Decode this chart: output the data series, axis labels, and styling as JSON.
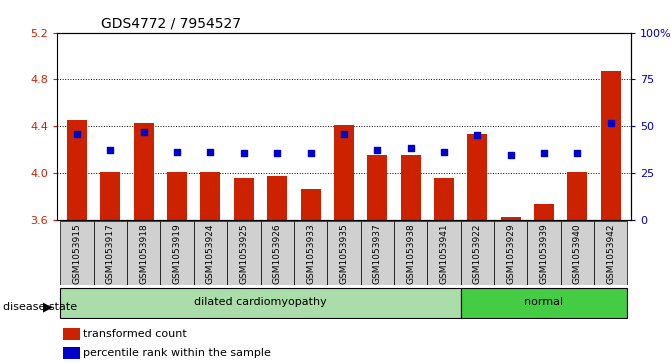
{
  "title": "GDS4772 / 7954527",
  "samples": [
    "GSM1053915",
    "GSM1053917",
    "GSM1053918",
    "GSM1053919",
    "GSM1053924",
    "GSM1053925",
    "GSM1053926",
    "GSM1053933",
    "GSM1053935",
    "GSM1053937",
    "GSM1053938",
    "GSM1053941",
    "GSM1053922",
    "GSM1053929",
    "GSM1053939",
    "GSM1053940",
    "GSM1053942"
  ],
  "bar_values": [
    4.45,
    4.01,
    4.43,
    4.01,
    4.01,
    3.96,
    3.97,
    3.86,
    4.41,
    4.15,
    4.15,
    3.96,
    4.33,
    3.62,
    3.73,
    4.01,
    4.87
  ],
  "dot_values": [
    4.33,
    4.2,
    4.35,
    4.18,
    4.18,
    4.17,
    4.17,
    4.17,
    4.33,
    4.2,
    4.21,
    4.18,
    4.32,
    4.15,
    4.17,
    4.17,
    4.43
  ],
  "ylim": [
    3.6,
    5.2
  ],
  "yticks": [
    3.6,
    4.0,
    4.4,
    4.8,
    5.2
  ],
  "right_yticks": [
    0,
    25,
    50,
    75,
    100
  ],
  "right_ylim": [
    0,
    100
  ],
  "bar_color": "#cc2200",
  "dot_color": "#0000cc",
  "group1_label": "dilated cardiomyopathy",
  "group1_count": 12,
  "group2_label": "normal",
  "group2_count": 5,
  "disease_state_label": "disease state",
  "legend_bar": "transformed count",
  "legend_dot": "percentile rank within the sample",
  "bar_width": 0.6,
  "background_color": "#ffffff",
  "axis_label_color_left": "#cc2200",
  "axis_label_color_right": "#0000bb",
  "sample_bg_color": "#d0d0d0",
  "group1_bg": "#aaddaa",
  "group2_bg": "#44cc44"
}
